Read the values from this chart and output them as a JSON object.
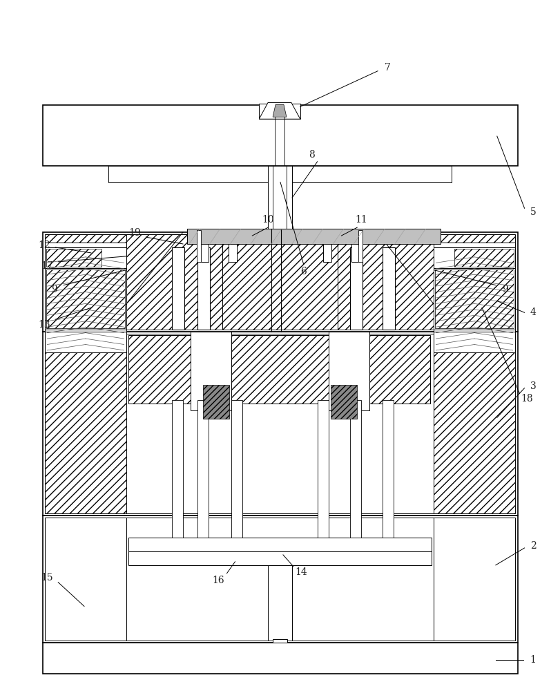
{
  "bg": "#ffffff",
  "lc": "#000000",
  "gray_fill": "#888888",
  "light_gray_fill": "#cccccc",
  "spring_color": "#555555",
  "fig_w": 8.11,
  "fig_h": 10.0,
  "dpi": 100,
  "lw_main": 1.2,
  "lw_thin": 0.7,
  "lw_spring": 0.5,
  "label_fs": 10,
  "label_color": "#222222"
}
